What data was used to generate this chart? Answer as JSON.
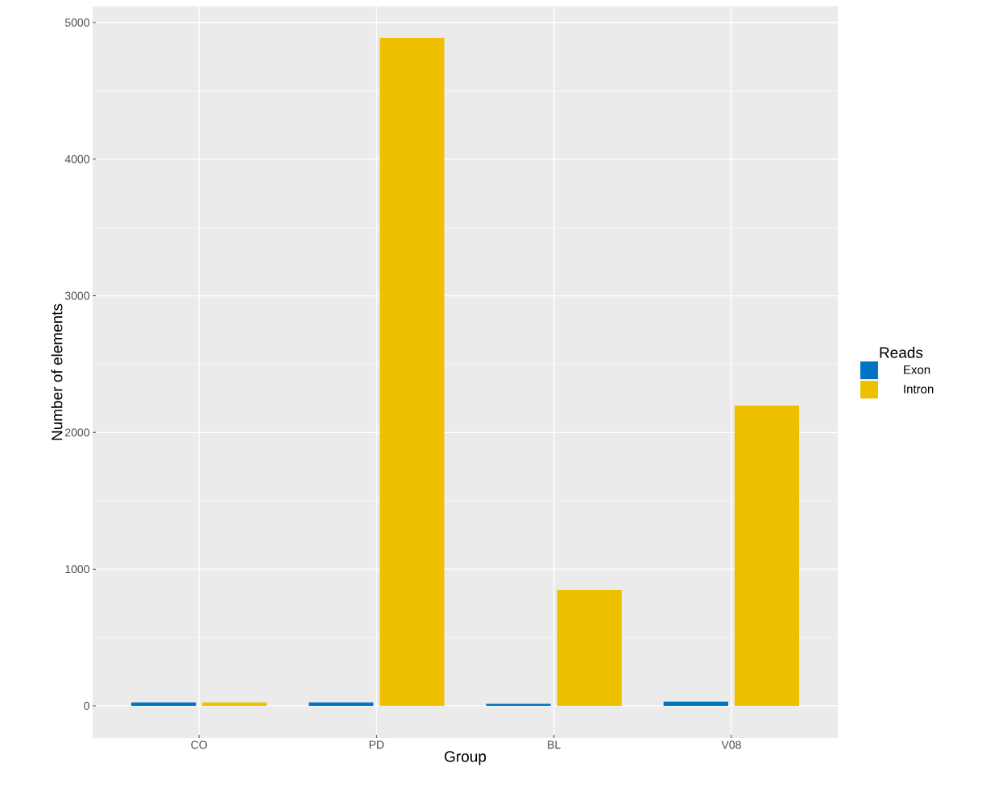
{
  "chart_data": {
    "type": "bar",
    "xlabel": "Group",
    "ylabel": "Number of elements",
    "legend_title": "Reads",
    "categories": [
      "CO",
      "PD",
      "BL",
      "V08"
    ],
    "series": [
      {
        "name": "Exon",
        "color": "#0073c2",
        "values": [
          25,
          25,
          15,
          30
        ]
      },
      {
        "name": "Intron",
        "color": "#efc000",
        "values": [
          25,
          4888,
          848,
          2197
        ]
      }
    ],
    "ylim": [
      -236,
      5118
    ],
    "yticks": [
      0,
      1000,
      2000,
      3000,
      4000,
      5000
    ],
    "grid": true,
    "legend": "right"
  }
}
